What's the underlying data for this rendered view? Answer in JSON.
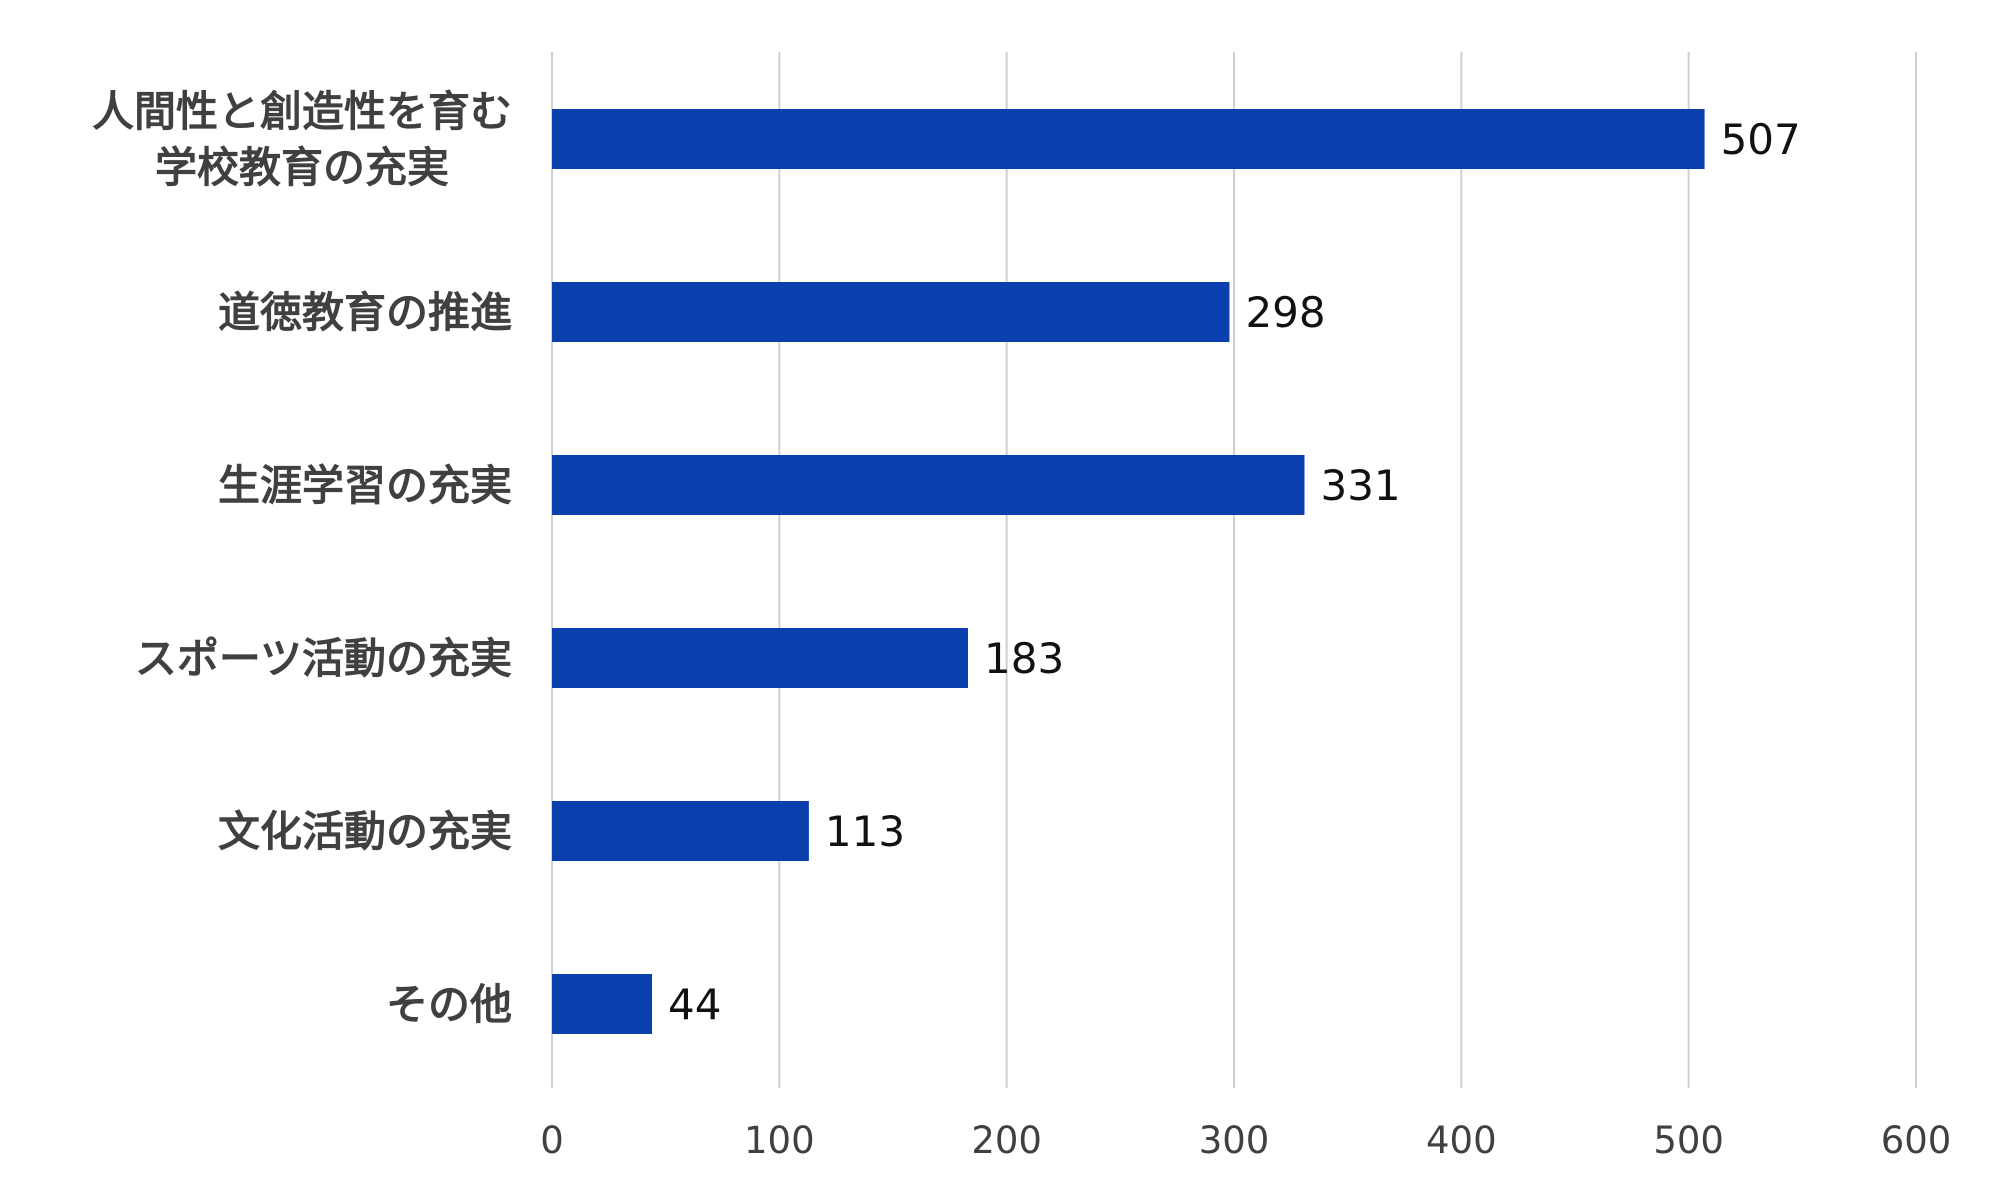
{
  "chart_data": {
    "type": "bar",
    "orientation": "horizontal",
    "categories": [
      "人間性と創造性を育む\n学校教育の充実",
      "道徳教育の推進",
      "生涯学習の充実",
      "スポーツ活動の充実",
      "文化活動の充実",
      "その他"
    ],
    "values": [
      507,
      298,
      331,
      183,
      113,
      44
    ],
    "data_labels": [
      "507",
      "298",
      "331",
      "183",
      "113",
      "44"
    ],
    "xlim": [
      0,
      600
    ],
    "x_ticks": [
      0,
      100,
      200,
      300,
      400,
      500,
      600
    ],
    "x_tick_labels": [
      "0",
      "100",
      "200",
      "300",
      "400",
      "500",
      "600"
    ],
    "grid": true,
    "grid_axis": "x",
    "legend": "none",
    "bar_color": "#0b3fae",
    "grid_color": "#d0d0d0",
    "label_color": "#404040"
  }
}
